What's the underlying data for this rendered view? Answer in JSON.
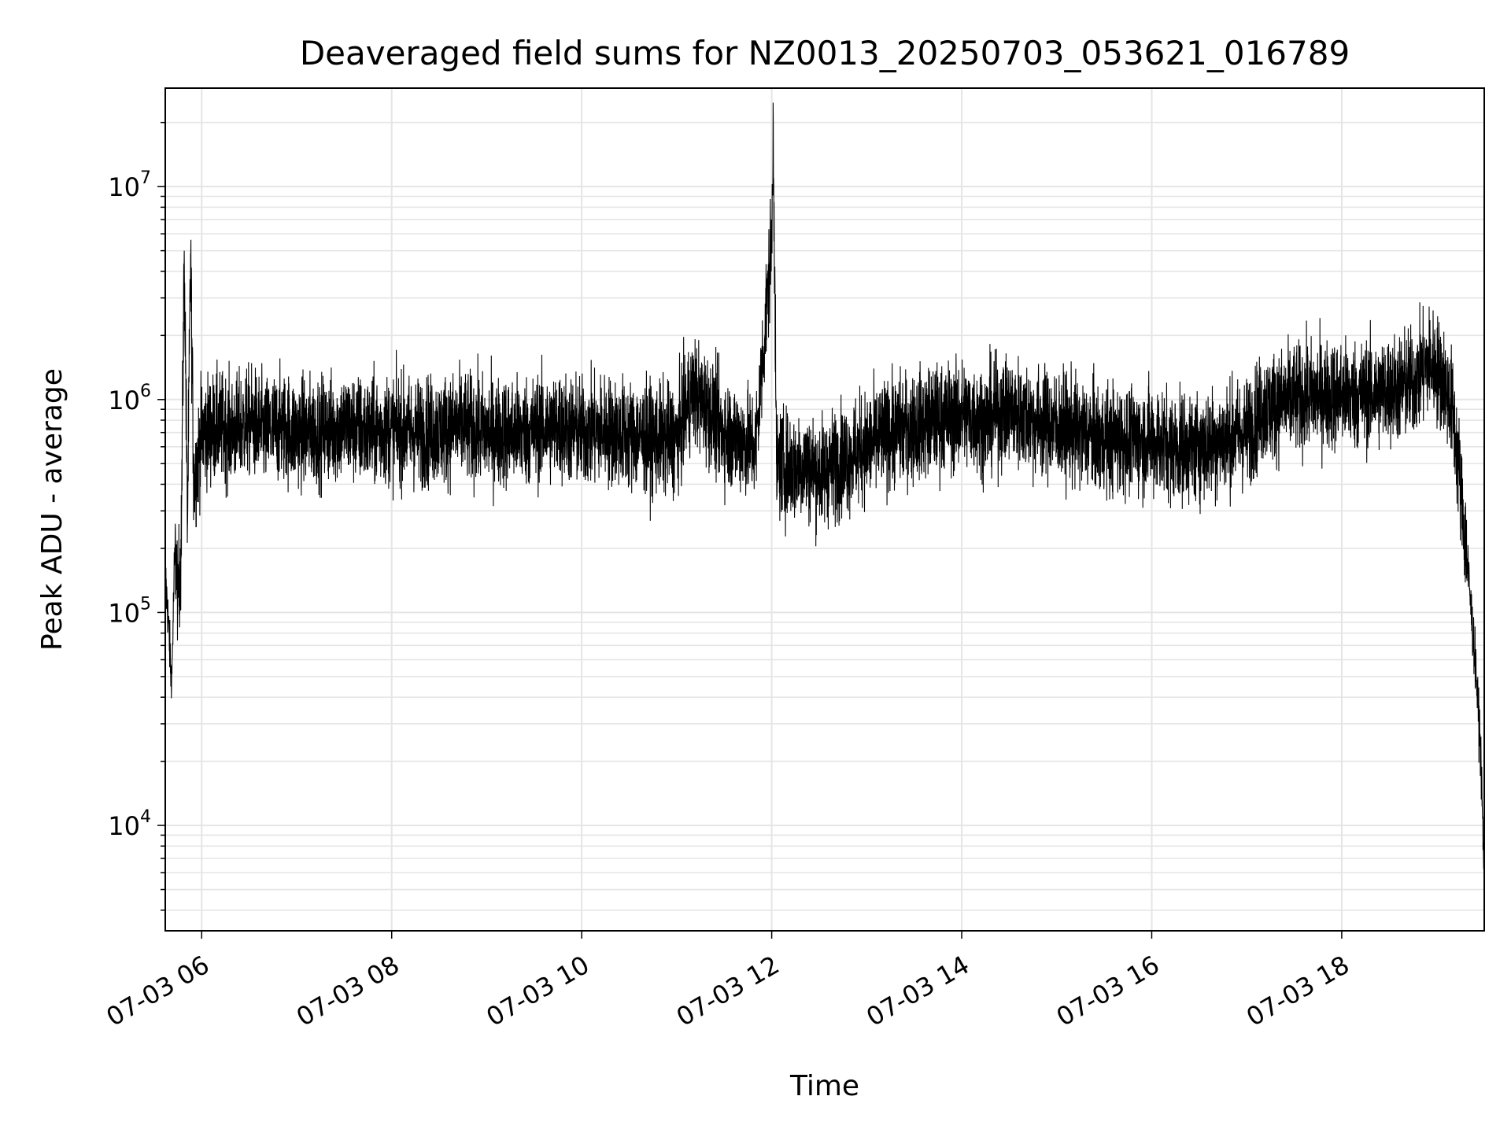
{
  "chart_data": {
    "type": "line",
    "title": "Deaveraged field sums for NZ0013_20250703_053621_016789",
    "xlabel": "Time",
    "ylabel": "Peak ADU - average",
    "yscale": "log",
    "xlim": [
      "07-03 05:37",
      "07-03 19:30"
    ],
    "ylim": [
      3200,
      29000000
    ],
    "x_ticks": [
      "07-03 06",
      "07-03 08",
      "07-03 10",
      "07-03 12",
      "07-03 14",
      "07-03 16",
      "07-03 18"
    ],
    "y_ticks": [
      {
        "value": 10000,
        "base": "10",
        "exp": "4"
      },
      {
        "value": 100000,
        "base": "10",
        "exp": "5"
      },
      {
        "value": 1000000,
        "base": "10",
        "exp": "6"
      },
      {
        "value": 10000000,
        "base": "10",
        "exp": "7"
      }
    ],
    "grid": true,
    "line_color": "#000000",
    "grid_color": "#e5e5e5",
    "series": [
      {
        "x": [
          "07-03 05:37",
          "07-03 05:39",
          "07-03 05:41",
          "07-03 05:43",
          "07-03 05:45",
          "07-03 05:47",
          "07-03 05:49",
          "07-03 05:51",
          "07-03 05:53",
          "07-03 05:55",
          "07-03 06:00",
          "07-03 06:10",
          "07-03 06:20",
          "07-03 06:30",
          "07-03 06:40",
          "07-03 06:50",
          "07-03 07:00",
          "07-03 07:15",
          "07-03 07:30",
          "07-03 07:45",
          "07-03 08:00",
          "07-03 08:15",
          "07-03 08:30",
          "07-03 08:45",
          "07-03 09:00",
          "07-03 09:15",
          "07-03 09:30",
          "07-03 09:45",
          "07-03 10:00",
          "07-03 10:15",
          "07-03 10:30",
          "07-03 10:45",
          "07-03 11:00",
          "07-03 11:10",
          "07-03 11:20",
          "07-03 11:30",
          "07-03 11:40",
          "07-03 11:50",
          "07-03 12:00",
          "07-03 12:01",
          "07-03 12:03",
          "07-03 12:10",
          "07-03 12:20",
          "07-03 12:30",
          "07-03 12:40",
          "07-03 12:50",
          "07-03 13:00",
          "07-03 13:15",
          "07-03 13:30",
          "07-03 13:45",
          "07-03 14:00",
          "07-03 14:15",
          "07-03 14:30",
          "07-03 14:45",
          "07-03 15:00",
          "07-03 15:15",
          "07-03 15:30",
          "07-03 15:45",
          "07-03 16:00",
          "07-03 16:15",
          "07-03 16:30",
          "07-03 16:45",
          "07-03 17:00",
          "07-03 17:10",
          "07-03 17:20",
          "07-03 17:30",
          "07-03 17:45",
          "07-03 18:00",
          "07-03 18:15",
          "07-03 18:30",
          "07-03 18:45",
          "07-03 18:55",
          "07-03 19:00",
          "07-03 19:05",
          "07-03 19:10",
          "07-03 19:15",
          "07-03 19:20",
          "07-03 19:25",
          "07-03 19:28",
          "07-03 19:30"
        ],
        "y": [
          150000,
          90000,
          45000,
          200000,
          130000,
          180000,
          5000000,
          250000,
          4800000,
          400000,
          700000,
          750000,
          700000,
          800000,
          700000,
          750000,
          700000,
          720000,
          750000,
          700000,
          730000,
          700000,
          720000,
          750000,
          700000,
          700000,
          720000,
          750000,
          700000,
          720000,
          680000,
          650000,
          650000,
          1100000,
          900000,
          700000,
          650000,
          600000,
          5500000,
          20000000,
          500000,
          480000,
          500000,
          450000,
          500000,
          550000,
          600000,
          700000,
          750000,
          800000,
          850000,
          800000,
          900000,
          800000,
          750000,
          700000,
          650000,
          650000,
          650000,
          600000,
          600000,
          650000,
          700000,
          900000,
          950000,
          1000000,
          1050000,
          1050000,
          1050000,
          1100000,
          1200000,
          1500000,
          1400000,
          1200000,
          900000,
          400000,
          150000,
          50000,
          20000,
          5000
        ],
        "noise": 0.55
      }
    ]
  }
}
